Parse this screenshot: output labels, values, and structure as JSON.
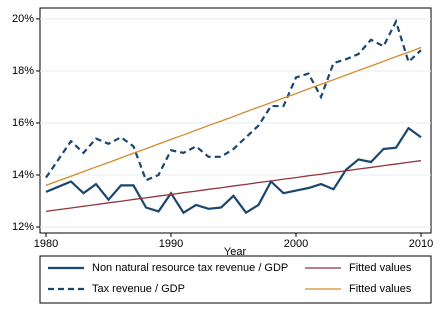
{
  "chart_data": {
    "type": "line",
    "x_label": "Year",
    "x": [
      1980,
      1981,
      1982,
      1983,
      1984,
      1985,
      1986,
      1987,
      1988,
      1989,
      1990,
      1991,
      1992,
      1993,
      1994,
      1995,
      1996,
      1997,
      1998,
      1999,
      2000,
      2001,
      2002,
      2003,
      2004,
      2005,
      2006,
      2007,
      2008,
      2009,
      2010
    ],
    "series": [
      {
        "name": "Non natural resource tax revenue / GDP",
        "color": "#1a476f",
        "style": "solid",
        "values": [
          13.35,
          13.55,
          13.75,
          13.3,
          13.65,
          13.05,
          13.6,
          13.6,
          12.75,
          12.6,
          13.3,
          12.55,
          12.85,
          12.7,
          12.75,
          13.2,
          12.55,
          12.85,
          13.75,
          13.3,
          13.4,
          13.5,
          13.65,
          13.45,
          14.2,
          14.6,
          14.5,
          15.0,
          15.05,
          15.8,
          15.45
        ]
      },
      {
        "name": "Fitted values",
        "color": "#90353b",
        "style": "solid",
        "values": [
          12.6,
          12.67,
          12.73,
          12.8,
          12.86,
          12.93,
          12.99,
          13.06,
          13.12,
          13.19,
          13.25,
          13.32,
          13.38,
          13.45,
          13.51,
          13.58,
          13.64,
          13.71,
          13.77,
          13.84,
          13.9,
          13.97,
          14.03,
          14.1,
          14.16,
          14.23,
          14.29,
          14.36,
          14.42,
          14.49,
          14.55
        ]
      },
      {
        "name": "Tax revenue / GDP",
        "color": "#1a476f",
        "style": "dash",
        "values": [
          13.9,
          14.6,
          15.3,
          14.85,
          15.4,
          15.2,
          15.45,
          15.1,
          13.8,
          14.0,
          14.95,
          14.85,
          15.1,
          14.7,
          14.7,
          15.0,
          15.45,
          15.9,
          16.65,
          16.65,
          17.75,
          17.9,
          17.0,
          18.3,
          18.45,
          18.65,
          19.2,
          18.95,
          19.9,
          18.35,
          18.8
        ]
      },
      {
        "name": "Fitted values",
        "color": "#d68b2c",
        "style": "solid",
        "values": [
          13.6,
          13.78,
          13.95,
          14.13,
          14.31,
          14.48,
          14.66,
          14.84,
          15.01,
          15.19,
          15.37,
          15.54,
          15.72,
          15.9,
          16.07,
          16.25,
          16.43,
          16.61,
          16.78,
          16.96,
          17.13,
          17.31,
          17.49,
          17.66,
          17.84,
          18.02,
          18.19,
          18.37,
          18.55,
          18.72,
          18.9
        ]
      }
    ],
    "xlim": [
      1979.52,
      2010.8
    ],
    "xticks": [
      1980,
      1990,
      2000,
      2010
    ],
    "ylim": [
      11.77,
      20.42
    ],
    "yticks": [
      {
        "value": 12,
        "label": "12%"
      },
      {
        "value": 14,
        "label": "14%"
      },
      {
        "value": 16,
        "label": "16%"
      },
      {
        "value": 18,
        "label": "18%"
      },
      {
        "value": 20,
        "label": "20%"
      }
    ],
    "grid": true,
    "legend_position": "bottom"
  }
}
